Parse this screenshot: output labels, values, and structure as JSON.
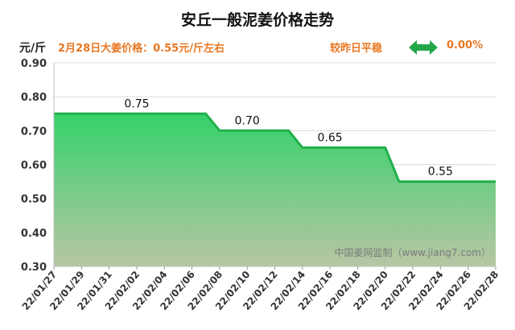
{
  "header": {
    "title": "安丘一般泥姜价格走势",
    "unit": "元/斤",
    "price_info": "2月28日大姜价格：0.55元/斤左右",
    "trend_text": "较昨日平稳",
    "trend_icon": "double-arrow-horizontal-icon",
    "change_pct": "0.00%"
  },
  "watermark": "中国姜网监制（www.jiang7.com）",
  "colors": {
    "line": "#22b04b",
    "fill_top": "#34d16a",
    "fill_bottom": "#b8c6a4",
    "accent": "#e87722"
  },
  "chart_data": {
    "type": "area",
    "title": "安丘一般泥姜价格走势",
    "ylabel": "元/斤",
    "xlabel": "",
    "ylim": [
      0.3,
      0.9
    ],
    "y_ticks": [
      "0.30",
      "0.40",
      "0.50",
      "0.60",
      "0.70",
      "0.80",
      "0.90"
    ],
    "x_ticks": [
      "22/01/27",
      "22/01/29",
      "22/01/31",
      "22/02/02",
      "22/02/04",
      "22/02/06",
      "22/02/08",
      "22/02/10",
      "22/02/12",
      "22/02/14",
      "22/02/16",
      "22/02/18",
      "22/02/20",
      "22/02/22",
      "22/02/24",
      "22/02/26",
      "22/02/28"
    ],
    "points": [
      {
        "date": "22/01/27",
        "value": 0.75
      },
      {
        "date": "22/02/07",
        "value": 0.75
      },
      {
        "date": "22/02/08",
        "value": 0.7
      },
      {
        "date": "22/02/13",
        "value": 0.7
      },
      {
        "date": "22/02/14",
        "value": 0.65
      },
      {
        "date": "22/02/20",
        "value": 0.65
      },
      {
        "date": "22/02/21",
        "value": 0.55
      },
      {
        "date": "22/02/28",
        "value": 0.55
      }
    ],
    "data_labels": [
      {
        "date": "22/02/02",
        "value": 0.75,
        "text": "0.75"
      },
      {
        "date": "22/02/10",
        "value": 0.7,
        "text": "0.70"
      },
      {
        "date": "22/02/16",
        "value": 0.65,
        "text": "0.65"
      },
      {
        "date": "22/02/24",
        "value": 0.55,
        "text": "0.55"
      }
    ]
  }
}
